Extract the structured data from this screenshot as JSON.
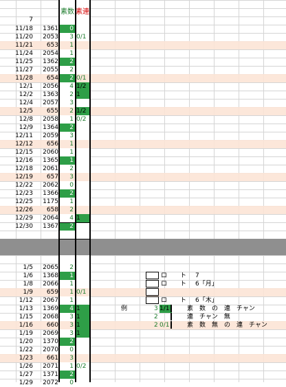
{
  "header": {
    "col_prime": "素数",
    "col_consec": "素連",
    "row_index": "7"
  },
  "colors": {
    "prime_fill": "#2e9e47",
    "highlight_row": "#fce4d6",
    "separator": "#8f8f8f",
    "text_green": "#1a7a2a",
    "text_red": "#d40000"
  },
  "rows": [
    {
      "date": "11/18",
      "num": "1361",
      "p": "0",
      "pf": true,
      "r": "",
      "rf": false,
      "hl": false
    },
    {
      "date": "11/20",
      "num": "2053",
      "p": "3",
      "pf": false,
      "r": "0/1",
      "rf": false,
      "hl": false
    },
    {
      "date": "11/21",
      "num": "653",
      "p": "1",
      "pf": false,
      "r": "",
      "rf": false,
      "hl": true
    },
    {
      "date": "11/24",
      "num": "2054",
      "p": "1",
      "pf": false,
      "r": "",
      "rf": false,
      "hl": false
    },
    {
      "date": "11/25",
      "num": "1362",
      "p": "2",
      "pf": true,
      "r": "",
      "rf": false,
      "hl": false
    },
    {
      "date": "11/27",
      "num": "2055",
      "p": "2",
      "pf": false,
      "r": "",
      "rf": false,
      "hl": false
    },
    {
      "date": "11/28",
      "num": "654",
      "p": "2",
      "pf": true,
      "r": "0/1",
      "rf": false,
      "hl": true
    },
    {
      "date": "12/1",
      "num": "2056",
      "p": "4",
      "pf": false,
      "r": "1/2",
      "rf": true,
      "hl": false
    },
    {
      "date": "12/2",
      "num": "1363",
      "p": "2",
      "pf": false,
      "r": "1",
      "rf": true,
      "hl": false
    },
    {
      "date": "12/4",
      "num": "2057",
      "p": "3",
      "pf": false,
      "r": "",
      "rf": false,
      "hl": false
    },
    {
      "date": "12/5",
      "num": "655",
      "p": "2",
      "pf": false,
      "r": "1/2",
      "rf": true,
      "hl": true
    },
    {
      "date": "12/8",
      "num": "2058",
      "p": "1",
      "pf": false,
      "r": "0/2",
      "rf": false,
      "hl": false
    },
    {
      "date": "12/9",
      "num": "1364",
      "p": "2",
      "pf": true,
      "r": "",
      "rf": false,
      "hl": false
    },
    {
      "date": "12/11",
      "num": "2059",
      "p": "3",
      "pf": false,
      "r": "",
      "rf": false,
      "hl": false
    },
    {
      "date": "12/12",
      "num": "656",
      "p": "1",
      "pf": false,
      "r": "",
      "rf": false,
      "hl": true
    },
    {
      "date": "12/15",
      "num": "2060",
      "p": "1",
      "pf": false,
      "r": "",
      "rf": false,
      "hl": false
    },
    {
      "date": "12/16",
      "num": "1365",
      "p": "1",
      "pf": true,
      "r": "",
      "rf": false,
      "hl": false
    },
    {
      "date": "12/18",
      "num": "2061",
      "p": "2",
      "pf": false,
      "r": "",
      "rf": false,
      "hl": false
    },
    {
      "date": "12/19",
      "num": "657",
      "p": "3",
      "pf": false,
      "r": "",
      "rf": false,
      "hl": true
    },
    {
      "date": "12/22",
      "num": "2062",
      "p": "0",
      "pf": false,
      "r": "",
      "rf": false,
      "hl": false
    },
    {
      "date": "12/23",
      "num": "1366",
      "p": "2",
      "pf": true,
      "r": "",
      "rf": false,
      "hl": false
    },
    {
      "date": "12/25",
      "num": "1175",
      "p": "1",
      "pf": false,
      "r": "",
      "rf": false,
      "hl": false
    },
    {
      "date": "12/26",
      "num": "658",
      "p": "2",
      "pf": false,
      "r": "",
      "rf": false,
      "hl": true
    },
    {
      "date": "12/29",
      "num": "2064",
      "p": "4",
      "pf": false,
      "r": "1",
      "rf": true,
      "hl": false
    },
    {
      "date": "12/30",
      "num": "1367",
      "p": "2",
      "pf": true,
      "r": "",
      "rf": false,
      "hl": false
    },
    {
      "spacer": true
    },
    {
      "band": true
    },
    {
      "spacer": true
    },
    {
      "date": "1/5",
      "num": "2065",
      "p": "2",
      "pf": false,
      "r": "",
      "rf": false,
      "hl": false
    },
    {
      "date": "1/6",
      "num": "1368",
      "p": "1",
      "pf": true,
      "r": "",
      "rf": false,
      "hl": false
    },
    {
      "date": "1/8",
      "num": "2066",
      "p": "1",
      "pf": false,
      "r": "",
      "rf": false,
      "hl": false
    },
    {
      "date": "1/9",
      "num": "659",
      "p": "1",
      "pf": false,
      "r": "0/1",
      "rf": false,
      "hl": true
    },
    {
      "date": "1/12",
      "num": "2067",
      "p": "1",
      "pf": false,
      "r": "",
      "rf": false,
      "hl": false
    },
    {
      "date": "1/13",
      "num": "1369",
      "p": "4",
      "pf": true,
      "r": "1",
      "rf": true,
      "hl": false
    },
    {
      "date": "1/15",
      "num": "2068",
      "p": "3",
      "pf": false,
      "r": "1",
      "rf": true,
      "hl": false
    },
    {
      "date": "1/16",
      "num": "660",
      "p": "3",
      "pf": false,
      "r": "1",
      "rf": true,
      "hl": true
    },
    {
      "date": "1/19",
      "num": "2069",
      "p": "3",
      "pf": false,
      "r": "1",
      "rf": true,
      "hl": false
    },
    {
      "date": "1/20",
      "num": "1370",
      "p": "2",
      "pf": true,
      "r": "",
      "rf": false,
      "hl": false
    },
    {
      "date": "1/22",
      "num": "2070",
      "p": "0",
      "pf": false,
      "r": "",
      "rf": false,
      "hl": false
    },
    {
      "date": "1/23",
      "num": "661",
      "p": "3",
      "pf": false,
      "r": "",
      "rf": false,
      "hl": true
    },
    {
      "date": "1/26",
      "num": "2071",
      "p": "1",
      "pf": false,
      "r": "0/2",
      "rf": false,
      "hl": false
    },
    {
      "date": "1/27",
      "num": "1371",
      "p": "2",
      "pf": true,
      "r": "",
      "rf": false,
      "hl": false
    },
    {
      "date": "1/29",
      "num": "2072",
      "p": "0",
      "pf": false,
      "r": "",
      "rf": false,
      "hl": false
    }
  ],
  "legend": {
    "boxes": [
      {
        "a": "ロ",
        "b": "ト",
        "c": "7"
      },
      {
        "a": "ロ",
        "b": "ト",
        "c": "6「月」"
      },
      {
        "a": "",
        "b": "",
        "c": ""
      },
      {
        "a": "ロ",
        "b": "ト",
        "c": "6「木」"
      }
    ],
    "example_label": "例",
    "examples": [
      {
        "n": "3",
        "m": "1/1",
        "filled": true,
        "text": "素　数　の　連　チャン"
      },
      {
        "n": "2",
        "m": "",
        "filled": false,
        "text": "連　チャン　無"
      },
      {
        "n": "2",
        "m": "0/1",
        "filled": false,
        "text": "素　数　無　の　連　チャン"
      }
    ]
  }
}
